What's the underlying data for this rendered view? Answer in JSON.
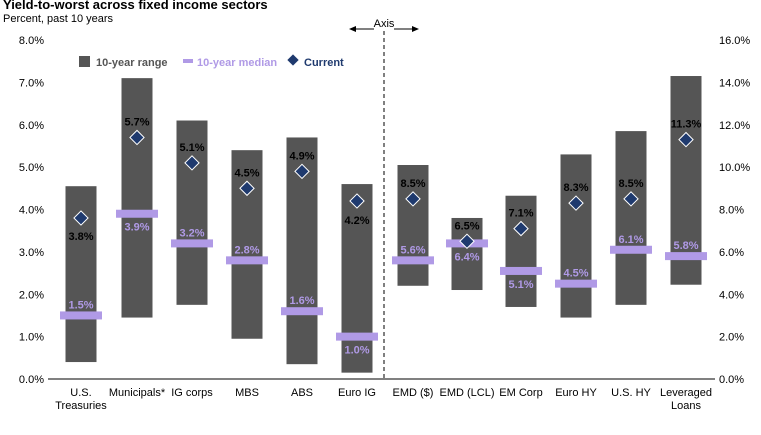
{
  "chart_data": {
    "type": "floating-bar",
    "title": "Yield-to-worst across fixed income sectors",
    "subtitle": "Percent, past 10 years",
    "divider_label": "Axis",
    "left_axis": {
      "ylim": [
        0,
        8
      ],
      "ticks": [
        "0.0%",
        "1.0%",
        "2.0%",
        "3.0%",
        "4.0%",
        "5.0%",
        "6.0%",
        "7.0%",
        "8.0%"
      ]
    },
    "right_axis": {
      "ylim": [
        0,
        16
      ],
      "ticks": [
        "0.0%",
        "2.0%",
        "4.0%",
        "6.0%",
        "8.0%",
        "10.0%",
        "12.0%",
        "14.0%",
        "16.0%"
      ]
    },
    "legend": [
      {
        "name": "10-year range",
        "color": "#555555"
      },
      {
        "name": "10-year median",
        "color": "#b09ae6"
      },
      {
        "name": "Current",
        "color": "#1f3a6e"
      }
    ],
    "colors": {
      "range": "#555555",
      "median": "#b09ae6",
      "current": "#1f3a6e"
    },
    "categories": [
      {
        "name": "U.S.",
        "name2": "Treasuries",
        "axis": "left",
        "low": 0.4,
        "high": 4.55,
        "median": 1.5,
        "current": 3.8,
        "median_label": "1.5%",
        "current_label": "3.8%"
      },
      {
        "name": "Municipals*",
        "name2": "",
        "axis": "left",
        "low": 1.45,
        "high": 7.1,
        "median": 3.9,
        "current": 5.7,
        "median_label": "3.9%",
        "current_label": "5.7%"
      },
      {
        "name": "IG corps",
        "name2": "",
        "axis": "left",
        "low": 1.75,
        "high": 6.1,
        "median": 3.2,
        "current": 5.1,
        "median_label": "3.2%",
        "current_label": "5.1%"
      },
      {
        "name": "MBS",
        "name2": "",
        "axis": "left",
        "low": 0.95,
        "high": 5.4,
        "median": 2.8,
        "current": 4.5,
        "median_label": "2.8%",
        "current_label": "4.5%"
      },
      {
        "name": "ABS",
        "name2": "",
        "axis": "left",
        "low": 0.35,
        "high": 5.7,
        "median": 1.6,
        "current": 4.9,
        "median_label": "1.6%",
        "current_label": "4.9%"
      },
      {
        "name": "Euro IG",
        "name2": "",
        "axis": "left",
        "low": 0.15,
        "high": 4.6,
        "median": 1.0,
        "current": 4.2,
        "median_label": "1.0%",
        "current_label": "4.2%"
      },
      {
        "name": "EMD ($)",
        "name2": "",
        "axis": "right",
        "low": 4.4,
        "high": 10.1,
        "median": 5.6,
        "current": 8.5,
        "median_label": "5.6%",
        "current_label": "8.5%"
      },
      {
        "name": "EMD (LCL)",
        "name2": "",
        "axis": "right",
        "low": 4.2,
        "high": 7.6,
        "median": 6.4,
        "current": 6.5,
        "median_label": "6.4%",
        "current_label": "6.5%"
      },
      {
        "name": "EM Corp",
        "name2": "",
        "axis": "right",
        "low": 3.4,
        "high": 8.65,
        "median": 5.1,
        "current": 7.1,
        "median_label": "5.1%",
        "current_label": "7.1%"
      },
      {
        "name": "Euro HY",
        "name2": "",
        "axis": "right",
        "low": 2.9,
        "high": 10.6,
        "median": 4.5,
        "current": 8.3,
        "median_label": "4.5%",
        "current_label": "8.3%"
      },
      {
        "name": "U.S. HY",
        "name2": "",
        "axis": "right",
        "low": 3.5,
        "high": 11.7,
        "median": 6.1,
        "current": 8.5,
        "median_label": "6.1%",
        "current_label": "8.5%"
      },
      {
        "name": "Leveraged",
        "name2": "Loans",
        "axis": "right",
        "low": 4.45,
        "high": 14.3,
        "median": 5.8,
        "current": 11.3,
        "median_label": "5.8%",
        "current_label": "11.3%"
      }
    ]
  }
}
